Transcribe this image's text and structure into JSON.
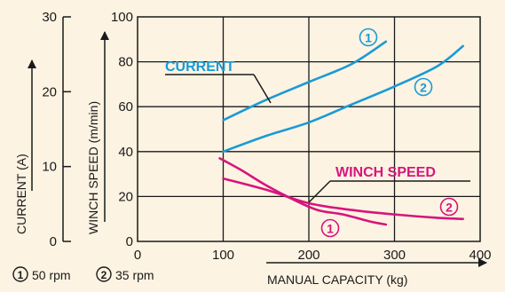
{
  "chart_data": {
    "type": "line",
    "xlabel": "MANUAL CAPACITY (kg)",
    "ylabel_left": "CURRENT (A)",
    "ylabel_right": "WINCH SPEED (m/min)",
    "x_ticks": [
      "0",
      "100",
      "200",
      "300",
      "400"
    ],
    "y_ticks_current": [
      "0",
      "10",
      "20",
      "30"
    ],
    "y_ticks_speed": [
      "0",
      "20",
      "40",
      "60",
      "80",
      "100"
    ],
    "xlim": [
      0,
      400
    ],
    "ylim_current": [
      0,
      30
    ],
    "ylim_speed": [
      0,
      100
    ],
    "grid": true,
    "colors": {
      "current": "#1a9ad6",
      "speed": "#d6157e",
      "axis": "#1a1a1a"
    },
    "group_labels": {
      "current": "CURRENT",
      "speed": "WINCH SPEED"
    },
    "markers": {
      "rpm50": "1",
      "rpm35": "2"
    },
    "series": [
      {
        "group": "current",
        "marker": "1",
        "axis": "speed_scale",
        "points": [
          [
            100,
            54
          ],
          [
            150,
            63
          ],
          [
            200,
            71
          ],
          [
            250,
            79
          ],
          [
            290,
            89
          ]
        ]
      },
      {
        "group": "current",
        "marker": "2",
        "axis": "speed_scale",
        "points": [
          [
            100,
            40
          ],
          [
            150,
            47
          ],
          [
            200,
            53
          ],
          [
            250,
            61
          ],
          [
            300,
            69
          ],
          [
            350,
            78
          ],
          [
            380,
            87
          ]
        ]
      },
      {
        "group": "speed",
        "marker": "1",
        "axis": "speed_scale",
        "points": [
          [
            96,
            37
          ],
          [
            120,
            32
          ],
          [
            150,
            25
          ],
          [
            180,
            19
          ],
          [
            210,
            14
          ],
          [
            240,
            12
          ],
          [
            270,
            9
          ],
          [
            290,
            7.5
          ]
        ]
      },
      {
        "group": "speed",
        "marker": "2",
        "axis": "speed_scale",
        "points": [
          [
            100,
            28
          ],
          [
            150,
            23
          ],
          [
            200,
            17
          ],
          [
            250,
            14
          ],
          [
            300,
            12
          ],
          [
            350,
            10.5
          ],
          [
            380,
            10
          ]
        ]
      }
    ]
  },
  "legend": {
    "item1_marker": "1",
    "item1_text": "50 rpm",
    "item2_marker": "2",
    "item2_text": "35 rpm"
  }
}
